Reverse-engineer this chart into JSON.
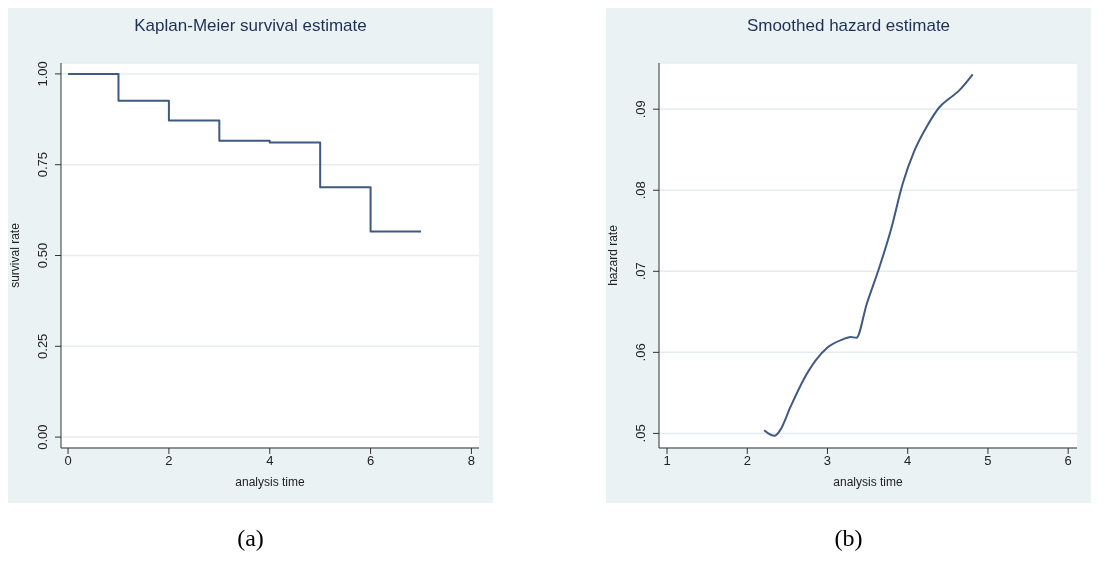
{
  "chart_data": [
    {
      "type": "step",
      "title": "Kaplan-Meier survival estimate",
      "xlabel": "analysis time",
      "ylabel": "survival rate",
      "x": [
        0,
        1,
        2,
        3,
        4,
        5,
        6,
        7
      ],
      "series": [
        {
          "color": "#3e5a80",
          "values": [
            1,
            0.926,
            0.872,
            0.816,
            0.811,
            0.688,
            0.566,
            0.566
          ]
        }
      ],
      "xlim": [
        -0.14,
        8.15
      ],
      "xticks": [
        0,
        2,
        4,
        6,
        8
      ],
      "ylim": [
        -0.03,
        1.03
      ],
      "yticks": [
        {
          "value": 0,
          "label": "0.00"
        },
        {
          "value": 0.25,
          "label": "0.25"
        },
        {
          "value": 0.5,
          "label": "0.50"
        },
        {
          "value": 0.75,
          "label": "0.75"
        },
        {
          "value": 1,
          "label": "1.00"
        }
      ],
      "grid": "y",
      "legend": false,
      "marker": "none",
      "line_style": "solid",
      "annotations": [
        "(a)"
      ]
    },
    {
      "type": "line",
      "title": "Smoothed hazard estimate",
      "xlabel": "analysis time",
      "ylabel": "hazard rate",
      "x": [
        2.21,
        2.34,
        2.41,
        2.54,
        2.7,
        2.86,
        3.0,
        3.19,
        3.29,
        3.36,
        3.49,
        3.65,
        3.79,
        3.94,
        4.08,
        4.24,
        4.4,
        4.53,
        4.63,
        4.81
      ],
      "series": [
        {
          "color": "#3e5a80",
          "values": [
            0.0504,
            0.0497,
            0.0504,
            0.0533,
            0.0566,
            0.0591,
            0.0606,
            0.0616,
            0.0619,
            0.0618,
            0.066,
            0.0706,
            0.0751,
            0.0809,
            0.0848,
            0.0879,
            0.0903,
            0.0914,
            0.0922,
            0.0943
          ]
        }
      ],
      "xlim": [
        0.9,
        6.11
      ],
      "xticks": [
        1,
        2,
        3,
        4,
        5,
        6
      ],
      "ylim": [
        0.0482,
        0.0957
      ],
      "yticks": [
        {
          "value": 0.05,
          "label": ".05"
        },
        {
          "value": 0.06,
          "label": ".06"
        },
        {
          "value": 0.07,
          "label": ".07"
        },
        {
          "value": 0.08,
          "label": ".08"
        },
        {
          "value": 0.09,
          "label": ".09"
        }
      ],
      "grid": "y",
      "legend": false,
      "marker": "none",
      "line_style": "solid",
      "annotations": [
        "(b)"
      ]
    }
  ]
}
